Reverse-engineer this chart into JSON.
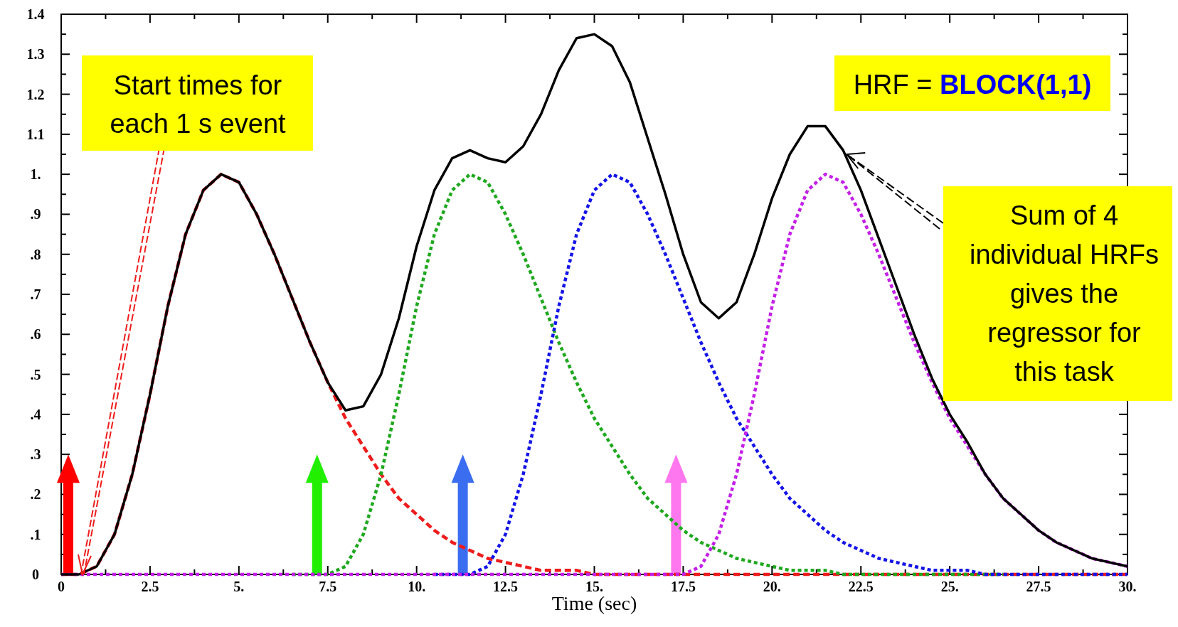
{
  "chart_data": {
    "type": "line",
    "xlabel": "Time (sec)",
    "xlim": [
      0,
      30
    ],
    "xticks": [
      0,
      {
        "value": 1.25,
        "label": null
      },
      2.5,
      {
        "value": 3.75,
        "label": null
      },
      {
        "value": 5,
        "label": "5."
      },
      {
        "value": 6.25,
        "label": null
      },
      7.5,
      {
        "value": 8.75,
        "label": null
      },
      {
        "value": 10,
        "label": "10."
      },
      {
        "value": 11.25,
        "label": null
      },
      12.5,
      {
        "value": 13.75,
        "label": null
      },
      {
        "value": 15,
        "label": "15."
      },
      {
        "value": 16.25,
        "label": null
      },
      17.5,
      {
        "value": 18.75,
        "label": null
      },
      {
        "value": 20,
        "label": "20."
      },
      {
        "value": 21.25,
        "label": null
      },
      22.5,
      {
        "value": 23.75,
        "label": null
      },
      {
        "value": 25,
        "label": "25."
      },
      {
        "value": 26.25,
        "label": null
      },
      27.5,
      {
        "value": 28.75,
        "label": null
      },
      {
        "value": 30,
        "label": "30."
      }
    ],
    "ylim": [
      0,
      1.4
    ],
    "yticks": [
      0,
      {
        "value": 0.05,
        "label": null
      },
      {
        "value": 0.1,
        "label": ".1"
      },
      {
        "value": 0.15,
        "label": null
      },
      {
        "value": 0.2,
        "label": ".2"
      },
      {
        "value": 0.25,
        "label": null
      },
      {
        "value": 0.3,
        "label": ".3"
      },
      {
        "value": 0.35,
        "label": null
      },
      {
        "value": 0.4,
        "label": ".4"
      },
      {
        "value": 0.45,
        "label": null
      },
      {
        "value": 0.5,
        "label": ".5"
      },
      {
        "value": 0.55,
        "label": null
      },
      {
        "value": 0.6,
        "label": ".6"
      },
      {
        "value": 0.65,
        "label": null
      },
      {
        "value": 0.7,
        "label": ".7"
      },
      {
        "value": 0.75,
        "label": null
      },
      {
        "value": 0.8,
        "label": ".8"
      },
      {
        "value": 0.85,
        "label": null
      },
      {
        "value": 0.9,
        "label": ".9"
      },
      {
        "value": 0.95,
        "label": null
      },
      {
        "value": 1,
        "label": "1."
      },
      {
        "value": 1.05,
        "label": null
      },
      1.1,
      {
        "value": 1.15,
        "label": null
      },
      1.2,
      {
        "value": 1.25,
        "label": null
      },
      1.3,
      {
        "value": 1.35,
        "label": null
      },
      1.4
    ],
    "x": [
      0,
      0.5,
      1,
      1.5,
      2,
      2.5,
      3,
      3.5,
      4,
      4.5,
      5,
      5.5,
      6,
      6.5,
      7,
      7.5,
      8,
      8.5,
      9,
      9.5,
      10,
      10.5,
      11,
      11.5,
      12,
      12.5,
      13,
      13.5,
      14,
      14.5,
      15,
      15.5,
      16,
      16.5,
      17,
      17.5,
      18,
      18.5,
      19,
      19.5,
      20,
      20.5,
      21,
      21.5,
      22,
      22.5,
      23,
      23.5,
      24,
      24.5,
      25,
      25.5,
      26,
      26.5,
      27,
      27.5,
      28,
      28.5,
      29,
      29.5,
      30
    ],
    "series": [
      {
        "color": "#ee1c1c",
        "line_style": "dashed",
        "values": [
          0,
          0,
          0.02,
          0.1,
          0.25,
          0.45,
          0.67,
          0.85,
          0.96,
          1,
          0.98,
          0.9,
          0.8,
          0.69,
          0.58,
          0.48,
          0.39,
          0.32,
          0.25,
          0.19,
          0.15,
          0.11,
          0.08,
          0.06,
          0.04,
          0.03,
          0.02,
          0.01,
          0.01,
          0.01,
          0,
          0,
          0,
          0,
          0,
          0,
          0,
          0,
          0,
          0,
          0,
          0,
          0,
          0,
          0,
          0,
          0,
          0,
          0,
          0,
          0,
          0,
          0,
          0,
          0,
          0,
          0,
          0,
          0,
          0,
          0
        ]
      },
      {
        "color": "#1ea81e",
        "line_style": "dotted",
        "values": [
          null,
          null,
          null,
          null,
          null,
          null,
          null,
          null,
          null,
          null,
          null,
          null,
          null,
          0,
          0,
          0,
          0.02,
          0.1,
          0.25,
          0.45,
          0.67,
          0.85,
          0.96,
          1,
          0.98,
          0.9,
          0.8,
          0.69,
          0.58,
          0.48,
          0.39,
          0.32,
          0.25,
          0.19,
          0.15,
          0.11,
          0.08,
          0.06,
          0.04,
          0.03,
          0.02,
          0.01,
          0.01,
          0.01,
          0,
          0,
          0,
          0,
          0,
          0,
          0,
          0,
          0,
          0,
          null,
          null,
          null,
          null,
          null,
          null,
          null
        ]
      },
      {
        "color": "#1414e6",
        "line_style": "dotted",
        "values": [
          null,
          null,
          null,
          null,
          null,
          null,
          null,
          null,
          null,
          null,
          null,
          null,
          null,
          null,
          null,
          null,
          null,
          null,
          null,
          null,
          null,
          0,
          0,
          0,
          0.02,
          0.1,
          0.25,
          0.45,
          0.67,
          0.85,
          0.96,
          1,
          0.98,
          0.9,
          0.8,
          0.69,
          0.58,
          0.48,
          0.39,
          0.32,
          0.25,
          0.19,
          0.15,
          0.11,
          0.08,
          0.06,
          0.04,
          0.03,
          0.02,
          0.01,
          0.01,
          0.01,
          0,
          0,
          0,
          0,
          0,
          0,
          0,
          0,
          0
        ]
      },
      {
        "color": "#c41fe8",
        "line_style": "dotted",
        "values": [
          0,
          0,
          0,
          0,
          0,
          0,
          0,
          0,
          0,
          0,
          0,
          0,
          0,
          0,
          0,
          0,
          0,
          0,
          0,
          0,
          0,
          0,
          0,
          0,
          0,
          0,
          0,
          0,
          0,
          0,
          0,
          0,
          0,
          0,
          0,
          0,
          0.02,
          0.1,
          0.25,
          0.45,
          0.67,
          0.85,
          0.96,
          1,
          0.98,
          0.9,
          0.8,
          0.69,
          0.58,
          0.48,
          0.39,
          0.32,
          0.25,
          0.19,
          0.15,
          0.11,
          0.08,
          0.06,
          0.04,
          0.03,
          0.02
        ]
      },
      {
        "color": "#000000",
        "line_style": "solid",
        "values": [
          0,
          0,
          0.02,
          0.1,
          0.25,
          0.45,
          0.67,
          0.85,
          0.96,
          1,
          0.98,
          0.9,
          0.8,
          0.69,
          0.58,
          0.48,
          0.41,
          0.42,
          0.5,
          0.64,
          0.82,
          0.96,
          1.04,
          1.06,
          1.04,
          1.03,
          1.07,
          1.15,
          1.26,
          1.34,
          1.35,
          1.32,
          1.23,
          1.09,
          0.95,
          0.8,
          0.68,
          0.64,
          0.68,
          0.8,
          0.94,
          1.05,
          1.12,
          1.12,
          1.06,
          0.96,
          0.84,
          0.72,
          0.6,
          0.49,
          0.4,
          0.33,
          0.25,
          0.19,
          0.15,
          0.11,
          0.08,
          0.06,
          0.04,
          0.03,
          0.02
        ]
      }
    ],
    "ref_lines": [
      {
        "axis": "x",
        "value": 0.2,
        "color": "#ff0000"
      },
      {
        "axis": "x",
        "value": 7.2,
        "color": "#22ee00"
      },
      {
        "axis": "x",
        "value": 11.3,
        "color": "#3a6df0"
      },
      {
        "axis": "x",
        "value": 17.3,
        "color": "#ff77ee"
      }
    ],
    "annotations": [
      {
        "text": "Start times for each 1 s event",
        "x": 0.6,
        "y": 0
      },
      "HRF = BLOCK(1,1)",
      {
        "text": "Sum of 4 individual HRFs gives the regressor for this task",
        "x": 22.1,
        "y": 1.05
      }
    ],
    "grid": false
  }
}
